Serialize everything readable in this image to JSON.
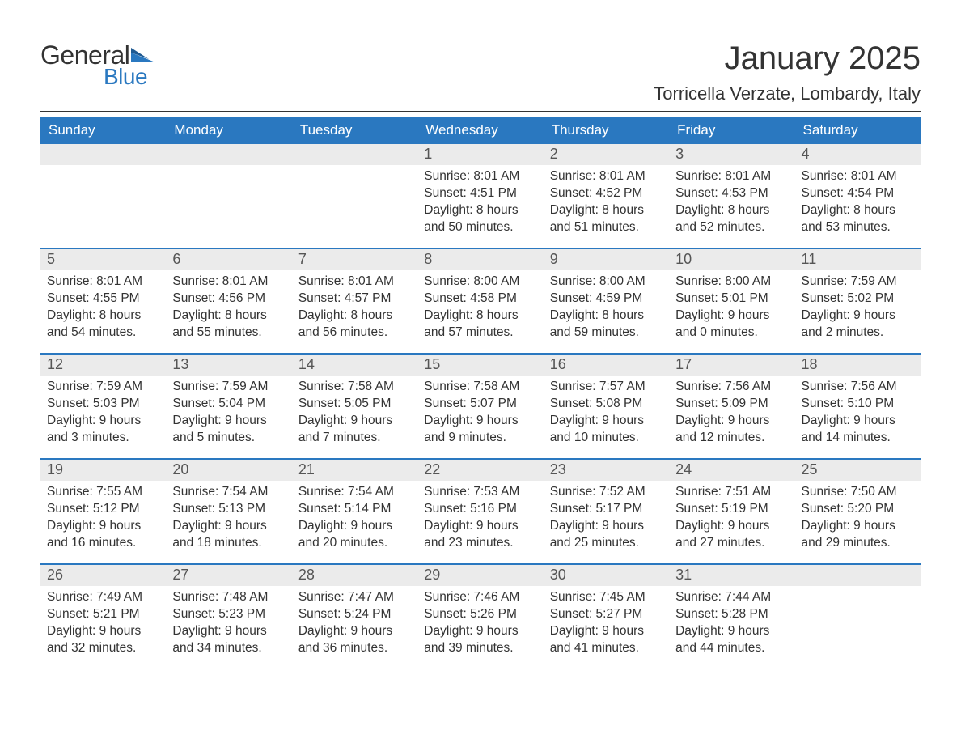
{
  "logo": {
    "text1": "General",
    "text2": "Blue",
    "flag_color": "#2a78c0"
  },
  "title": "January 2025",
  "location": "Torricella Verzate, Lombardy, Italy",
  "colors": {
    "header_bg": "#2a78c0",
    "header_text": "#ffffff",
    "daynum_bg": "#ebebeb",
    "body_text": "#333333",
    "divider": "#333333",
    "week_border": "#2a78c0"
  },
  "day_names": [
    "Sunday",
    "Monday",
    "Tuesday",
    "Wednesday",
    "Thursday",
    "Friday",
    "Saturday"
  ],
  "weeks": [
    [
      null,
      null,
      null,
      {
        "n": "1",
        "sunrise": "Sunrise: 8:01 AM",
        "sunset": "Sunset: 4:51 PM",
        "daylight": "Daylight: 8 hours and 50 minutes."
      },
      {
        "n": "2",
        "sunrise": "Sunrise: 8:01 AM",
        "sunset": "Sunset: 4:52 PM",
        "daylight": "Daylight: 8 hours and 51 minutes."
      },
      {
        "n": "3",
        "sunrise": "Sunrise: 8:01 AM",
        "sunset": "Sunset: 4:53 PM",
        "daylight": "Daylight: 8 hours and 52 minutes."
      },
      {
        "n": "4",
        "sunrise": "Sunrise: 8:01 AM",
        "sunset": "Sunset: 4:54 PM",
        "daylight": "Daylight: 8 hours and 53 minutes."
      }
    ],
    [
      {
        "n": "5",
        "sunrise": "Sunrise: 8:01 AM",
        "sunset": "Sunset: 4:55 PM",
        "daylight": "Daylight: 8 hours and 54 minutes."
      },
      {
        "n": "6",
        "sunrise": "Sunrise: 8:01 AM",
        "sunset": "Sunset: 4:56 PM",
        "daylight": "Daylight: 8 hours and 55 minutes."
      },
      {
        "n": "7",
        "sunrise": "Sunrise: 8:01 AM",
        "sunset": "Sunset: 4:57 PM",
        "daylight": "Daylight: 8 hours and 56 minutes."
      },
      {
        "n": "8",
        "sunrise": "Sunrise: 8:00 AM",
        "sunset": "Sunset: 4:58 PM",
        "daylight": "Daylight: 8 hours and 57 minutes."
      },
      {
        "n": "9",
        "sunrise": "Sunrise: 8:00 AM",
        "sunset": "Sunset: 4:59 PM",
        "daylight": "Daylight: 8 hours and 59 minutes."
      },
      {
        "n": "10",
        "sunrise": "Sunrise: 8:00 AM",
        "sunset": "Sunset: 5:01 PM",
        "daylight": "Daylight: 9 hours and 0 minutes."
      },
      {
        "n": "11",
        "sunrise": "Sunrise: 7:59 AM",
        "sunset": "Sunset: 5:02 PM",
        "daylight": "Daylight: 9 hours and 2 minutes."
      }
    ],
    [
      {
        "n": "12",
        "sunrise": "Sunrise: 7:59 AM",
        "sunset": "Sunset: 5:03 PM",
        "daylight": "Daylight: 9 hours and 3 minutes."
      },
      {
        "n": "13",
        "sunrise": "Sunrise: 7:59 AM",
        "sunset": "Sunset: 5:04 PM",
        "daylight": "Daylight: 9 hours and 5 minutes."
      },
      {
        "n": "14",
        "sunrise": "Sunrise: 7:58 AM",
        "sunset": "Sunset: 5:05 PM",
        "daylight": "Daylight: 9 hours and 7 minutes."
      },
      {
        "n": "15",
        "sunrise": "Sunrise: 7:58 AM",
        "sunset": "Sunset: 5:07 PM",
        "daylight": "Daylight: 9 hours and 9 minutes."
      },
      {
        "n": "16",
        "sunrise": "Sunrise: 7:57 AM",
        "sunset": "Sunset: 5:08 PM",
        "daylight": "Daylight: 9 hours and 10 minutes."
      },
      {
        "n": "17",
        "sunrise": "Sunrise: 7:56 AM",
        "sunset": "Sunset: 5:09 PM",
        "daylight": "Daylight: 9 hours and 12 minutes."
      },
      {
        "n": "18",
        "sunrise": "Sunrise: 7:56 AM",
        "sunset": "Sunset: 5:10 PM",
        "daylight": "Daylight: 9 hours and 14 minutes."
      }
    ],
    [
      {
        "n": "19",
        "sunrise": "Sunrise: 7:55 AM",
        "sunset": "Sunset: 5:12 PM",
        "daylight": "Daylight: 9 hours and 16 minutes."
      },
      {
        "n": "20",
        "sunrise": "Sunrise: 7:54 AM",
        "sunset": "Sunset: 5:13 PM",
        "daylight": "Daylight: 9 hours and 18 minutes."
      },
      {
        "n": "21",
        "sunrise": "Sunrise: 7:54 AM",
        "sunset": "Sunset: 5:14 PM",
        "daylight": "Daylight: 9 hours and 20 minutes."
      },
      {
        "n": "22",
        "sunrise": "Sunrise: 7:53 AM",
        "sunset": "Sunset: 5:16 PM",
        "daylight": "Daylight: 9 hours and 23 minutes."
      },
      {
        "n": "23",
        "sunrise": "Sunrise: 7:52 AM",
        "sunset": "Sunset: 5:17 PM",
        "daylight": "Daylight: 9 hours and 25 minutes."
      },
      {
        "n": "24",
        "sunrise": "Sunrise: 7:51 AM",
        "sunset": "Sunset: 5:19 PM",
        "daylight": "Daylight: 9 hours and 27 minutes."
      },
      {
        "n": "25",
        "sunrise": "Sunrise: 7:50 AM",
        "sunset": "Sunset: 5:20 PM",
        "daylight": "Daylight: 9 hours and 29 minutes."
      }
    ],
    [
      {
        "n": "26",
        "sunrise": "Sunrise: 7:49 AM",
        "sunset": "Sunset: 5:21 PM",
        "daylight": "Daylight: 9 hours and 32 minutes."
      },
      {
        "n": "27",
        "sunrise": "Sunrise: 7:48 AM",
        "sunset": "Sunset: 5:23 PM",
        "daylight": "Daylight: 9 hours and 34 minutes."
      },
      {
        "n": "28",
        "sunrise": "Sunrise: 7:47 AM",
        "sunset": "Sunset: 5:24 PM",
        "daylight": "Daylight: 9 hours and 36 minutes."
      },
      {
        "n": "29",
        "sunrise": "Sunrise: 7:46 AM",
        "sunset": "Sunset: 5:26 PM",
        "daylight": "Daylight: 9 hours and 39 minutes."
      },
      {
        "n": "30",
        "sunrise": "Sunrise: 7:45 AM",
        "sunset": "Sunset: 5:27 PM",
        "daylight": "Daylight: 9 hours and 41 minutes."
      },
      {
        "n": "31",
        "sunrise": "Sunrise: 7:44 AM",
        "sunset": "Sunset: 5:28 PM",
        "daylight": "Daylight: 9 hours and 44 minutes."
      },
      null
    ]
  ]
}
